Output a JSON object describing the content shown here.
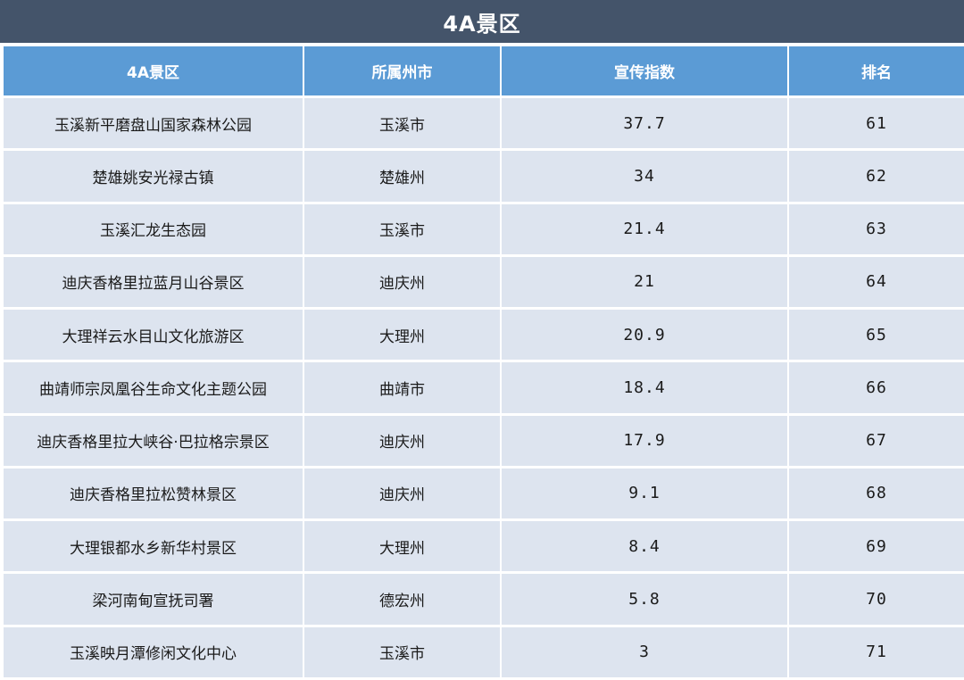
{
  "title": "4A景区",
  "headers": {
    "scenic": "4A景区",
    "city": "所属州市",
    "index": "宣传指数",
    "rank": "排名"
  },
  "rows": [
    {
      "scenic": "玉溪新平磨盘山国家森林公园",
      "city": "玉溪市",
      "index": "37.7",
      "rank": "61"
    },
    {
      "scenic": "楚雄姚安光禄古镇",
      "city": "楚雄州",
      "index": "34",
      "rank": "62"
    },
    {
      "scenic": "玉溪汇龙生态园",
      "city": "玉溪市",
      "index": "21.4",
      "rank": "63"
    },
    {
      "scenic": "迪庆香格里拉蓝月山谷景区",
      "city": "迪庆州",
      "index": "21",
      "rank": "64"
    },
    {
      "scenic": "大理祥云水目山文化旅游区",
      "city": "大理州",
      "index": "20.9",
      "rank": "65"
    },
    {
      "scenic": "曲靖师宗凤凰谷生命文化主题公园",
      "city": "曲靖市",
      "index": "18.4",
      "rank": "66"
    },
    {
      "scenic": "迪庆香格里拉大峡谷·巴拉格宗景区",
      "city": "迪庆州",
      "index": "17.9",
      "rank": "67"
    },
    {
      "scenic": "迪庆香格里拉松赞林景区",
      "city": "迪庆州",
      "index": "9.1",
      "rank": "68"
    },
    {
      "scenic": "大理银都水乡新华村景区",
      "city": "大理州",
      "index": "8.4",
      "rank": "69"
    },
    {
      "scenic": "梁河南甸宣抚司署",
      "city": "德宏州",
      "index": "5.8",
      "rank": "70"
    },
    {
      "scenic": "玉溪映月潭修闲文化中心",
      "city": "玉溪市",
      "index": "3",
      "rank": "71"
    }
  ],
  "colors": {
    "title_bar": "#44546a",
    "header": "#5b9bd5",
    "row": "#dde4ef",
    "header_text": "#ffffff",
    "body_text": "#1a1a1a"
  }
}
